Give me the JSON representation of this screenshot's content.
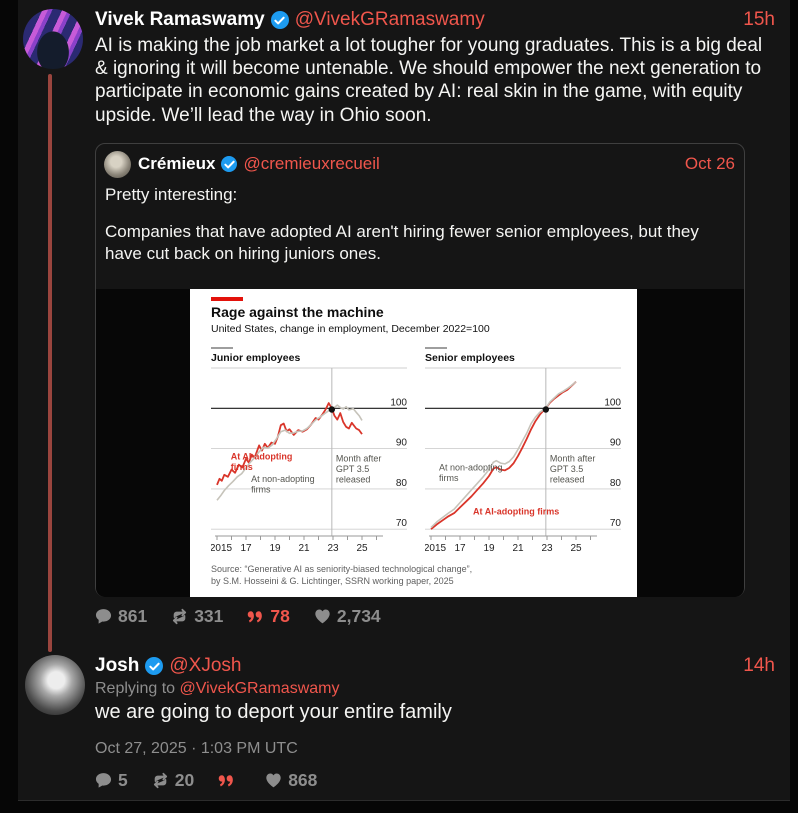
{
  "accent_color": "#f0564c",
  "badge_color": "#1d9bf0",
  "main_tweet": {
    "display_name": "Vivek Ramaswamy",
    "handle": "@VivekGRamaswamy",
    "time": "15h",
    "text": "AI is making the job market a lot tougher for young graduates. This is a big deal & ignoring it will become untenable. We should empower the next generation to participate in economic gains created by AI: real skin in the game, with equity upside. We’ll lead the way in Ohio soon.",
    "stats": {
      "comments": "861",
      "retweets": "331",
      "quotes": "78",
      "likes": "2,734"
    }
  },
  "quote_tweet": {
    "display_name": "Crémieux",
    "handle": "@cremieuxrecueil",
    "date": "Oct 26",
    "text_line1": "Pretty interesting:",
    "text_line2": "Companies that have adopted AI aren't hiring fewer senior employees, but they have cut back on hiring juniors ones."
  },
  "reply_tweet": {
    "display_name": "Josh",
    "handle": "@XJosh",
    "time": "14h",
    "replying_to_label": "Replying to ",
    "replying_to_handle": "@VivekGRamaswamy",
    "text": "we are going to deport your entire family",
    "timestamp": "Oct 27, 2025 · 1:03 PM UTC",
    "stats": {
      "comments": "5",
      "retweets": "20",
      "quotes": "",
      "likes": "868"
    }
  },
  "chart_data": {
    "type": "line",
    "title": "Rage against the machine",
    "subtitle": "United States, change in employment, December 2022=100",
    "source_line1": "Source: “Generative AI as seniority-biased technological change”,",
    "source_line2": "by S.M. Hosseini & G. Lichtinger, SSRN working paper, 2025",
    "ylim": [
      70,
      110
    ],
    "yticks": [
      70,
      80,
      90,
      100,
      110
    ],
    "xlim": [
      2015,
      2026.3
    ],
    "xtick_years": [
      2015,
      2016,
      2017,
      2018,
      2019,
      2020,
      2021,
      2022,
      2023,
      2024,
      2025,
      2026
    ],
    "xtick_labels": {
      "2015": "2015",
      "2017": "17",
      "2019": "19",
      "2021": "21",
      "2023": "23",
      "2025": "25"
    },
    "grid": true,
    "legend_position": "inline-labels",
    "event_line": {
      "year": 2022.92,
      "dot_value": 99.7,
      "label": [
        "Month after",
        "GPT 3.5",
        "released"
      ]
    },
    "colors": {
      "ai": "#d9352a",
      "non": "#c6c3ba",
      "muted": "#55554f",
      "baseline": "#1a1a1a",
      "grid": "#cfcfcf"
    },
    "panels": [
      {
        "title": "Junior employees",
        "series": [
          {
            "name": "At AI-adopting firms",
            "color_key": "ai",
            "points": [
              [
                2015.0,
                81
              ],
              [
                2015.17,
                82.5
              ],
              [
                2015.33,
                82
              ],
              [
                2015.5,
                83.5
              ],
              [
                2015.75,
                83
              ],
              [
                2016.0,
                84.8
              ],
              [
                2016.25,
                84
              ],
              [
                2016.5,
                86
              ],
              [
                2016.75,
                85.3
              ],
              [
                2017.0,
                87.5
              ],
              [
                2017.2,
                86.5
              ],
              [
                2017.4,
                88.5
              ],
              [
                2017.6,
                87.8
              ],
              [
                2017.9,
                90.8
              ],
              [
                2018.1,
                89.5
              ],
              [
                2018.3,
                91.2
              ],
              [
                2018.5,
                90.2
              ],
              [
                2018.75,
                91.5
              ],
              [
                2019.0,
                91.2
              ],
              [
                2019.2,
                93
              ],
              [
                2019.4,
                95.8
              ],
              [
                2019.6,
                96.2
              ],
              [
                2019.8,
                94.3
              ],
              [
                2020.0,
                94.8
              ],
              [
                2020.3,
                93.4
              ],
              [
                2020.6,
                94.6
              ],
              [
                2020.9,
                94.2
              ],
              [
                2021.2,
                94.8
              ],
              [
                2021.5,
                96
              ],
              [
                2021.8,
                97.6
              ],
              [
                2022.0,
                97.2
              ],
              [
                2022.3,
                98.6
              ],
              [
                2022.5,
                99.8
              ],
              [
                2022.7,
                101.3
              ],
              [
                2022.92,
                100
              ],
              [
                2023.1,
                98.2
              ],
              [
                2023.3,
                97.2
              ],
              [
                2023.5,
                98.8
              ],
              [
                2023.7,
                96.6
              ],
              [
                2023.9,
                95.4
              ],
              [
                2024.1,
                95
              ],
              [
                2024.3,
                96.4
              ],
              [
                2024.6,
                95
              ],
              [
                2024.8,
                94.6
              ],
              [
                2025.0,
                93.6
              ]
            ]
          },
          {
            "name": "At non-adopting firms",
            "color_key": "non",
            "points": [
              [
                2015.0,
                77.2
              ],
              [
                2015.25,
                78.3
              ],
              [
                2015.5,
                79.6
              ],
              [
                2015.8,
                80.8
              ],
              [
                2016.1,
                81.8
              ],
              [
                2016.4,
                83
              ],
              [
                2016.7,
                83.8
              ],
              [
                2017.0,
                85.2
              ],
              [
                2017.3,
                86.6
              ],
              [
                2017.6,
                87.8
              ],
              [
                2017.9,
                89.2
              ],
              [
                2018.2,
                90.3
              ],
              [
                2018.5,
                90.1
              ],
              [
                2018.8,
                90.9
              ],
              [
                2019.1,
                92.4
              ],
              [
                2019.4,
                94.2
              ],
              [
                2019.7,
                94.6
              ],
              [
                2020.0,
                93.8
              ],
              [
                2020.3,
                93.9
              ],
              [
                2020.6,
                94.3
              ],
              [
                2020.9,
                94.4
              ],
              [
                2021.2,
                95
              ],
              [
                2021.5,
                96
              ],
              [
                2021.8,
                97.1
              ],
              [
                2022.1,
                97.8
              ],
              [
                2022.4,
                98.6
              ],
              [
                2022.7,
                99.4
              ],
              [
                2022.92,
                100
              ],
              [
                2023.1,
                100.2
              ],
              [
                2023.3,
                100.8
              ],
              [
                2023.5,
                100.2
              ],
              [
                2023.7,
                99.8
              ],
              [
                2023.9,
                100.4
              ],
              [
                2024.1,
                99.6
              ],
              [
                2024.4,
                99.9
              ],
              [
                2024.6,
                99
              ],
              [
                2024.8,
                98.2
              ],
              [
                2025.0,
                97
              ]
            ]
          }
        ],
        "labels": [
          {
            "lines": [
              "At AI-adopting",
              "firms"
            ],
            "color_key": "ai",
            "bold": true,
            "year": 2015.95,
            "value": 87.3
          },
          {
            "lines": [
              "At non-adopting",
              "firms"
            ],
            "color_key": "muted",
            "bold": false,
            "year": 2017.35,
            "value": 81.7
          },
          {
            "lines": [
              "Month after",
              "GPT 3.5",
              "released"
            ],
            "color_key": "muted",
            "bold": false,
            "year": 2023.2,
            "value": 86.8
          }
        ]
      },
      {
        "title": "Senior employees",
        "series": [
          {
            "name": "At AI-adopting firms",
            "color_key": "ai",
            "points": [
              [
                2015.0,
                70
              ],
              [
                2015.4,
                71.2
              ],
              [
                2015.8,
                72.2
              ],
              [
                2016.2,
                73.2
              ],
              [
                2016.6,
                74
              ],
              [
                2017.0,
                75.4
              ],
              [
                2017.4,
                76.8
              ],
              [
                2017.8,
                78.2
              ],
              [
                2018.2,
                79.8
              ],
              [
                2018.6,
                81.4
              ],
              [
                2019.0,
                83.2
              ],
              [
                2019.3,
                85
              ],
              [
                2019.5,
                85.4
              ],
              [
                2019.8,
                84.8
              ],
              [
                2020.1,
                84.6
              ],
              [
                2020.4,
                85.2
              ],
              [
                2020.7,
                86.4
              ],
              [
                2021.0,
                88.2
              ],
              [
                2021.3,
                90.2
              ],
              [
                2021.6,
                92.4
              ],
              [
                2021.9,
                94.8
              ],
              [
                2022.2,
                96.8
              ],
              [
                2022.5,
                98.4
              ],
              [
                2022.75,
                99.4
              ],
              [
                2022.92,
                100
              ],
              [
                2023.2,
                101.4
              ],
              [
                2023.5,
                102.4
              ],
              [
                2023.8,
                103.2
              ],
              [
                2024.1,
                104
              ],
              [
                2024.4,
                104.6
              ],
              [
                2024.7,
                105.6
              ],
              [
                2025.0,
                106.6
              ]
            ]
          },
          {
            "name": "At non-adopting firms",
            "color_key": "non",
            "points": [
              [
                2015.0,
                70.4
              ],
              [
                2015.4,
                71.8
              ],
              [
                2015.8,
                72.9
              ],
              [
                2016.2,
                74
              ],
              [
                2016.6,
                75
              ],
              [
                2017.0,
                76.6
              ],
              [
                2017.4,
                78.2
              ],
              [
                2017.8,
                79.8
              ],
              [
                2018.2,
                81.4
              ],
              [
                2018.6,
                83
              ],
              [
                2019.0,
                84.8
              ],
              [
                2019.3,
                86.6
              ],
              [
                2019.5,
                87
              ],
              [
                2019.8,
                86.4
              ],
              [
                2020.1,
                86.2
              ],
              [
                2020.4,
                86.8
              ],
              [
                2020.7,
                88
              ],
              [
                2021.0,
                89.8
              ],
              [
                2021.3,
                91.8
              ],
              [
                2021.6,
                93.8
              ],
              [
                2021.9,
                96.2
              ],
              [
                2022.2,
                97.8
              ],
              [
                2022.5,
                99
              ],
              [
                2022.75,
                99.6
              ],
              [
                2022.92,
                100
              ],
              [
                2023.2,
                101.6
              ],
              [
                2023.5,
                102.6
              ],
              [
                2023.8,
                103.6
              ],
              [
                2024.1,
                104.2
              ],
              [
                2024.4,
                104.9
              ],
              [
                2024.7,
                105.7
              ],
              [
                2025.0,
                106.6
              ]
            ]
          }
        ],
        "labels": [
          {
            "lines": [
              "At non-adopting",
              "firms"
            ],
            "color_key": "muted",
            "bold": false,
            "year": 2015.55,
            "value": 84.6
          },
          {
            "lines": [
              "At AI-adopting firms"
            ],
            "color_key": "ai",
            "bold": true,
            "year": 2017.9,
            "value": 73.6
          },
          {
            "lines": [
              "Month after",
              "GPT 3.5",
              "released"
            ],
            "color_key": "muted",
            "bold": false,
            "year": 2023.2,
            "value": 86.8
          }
        ]
      }
    ]
  }
}
